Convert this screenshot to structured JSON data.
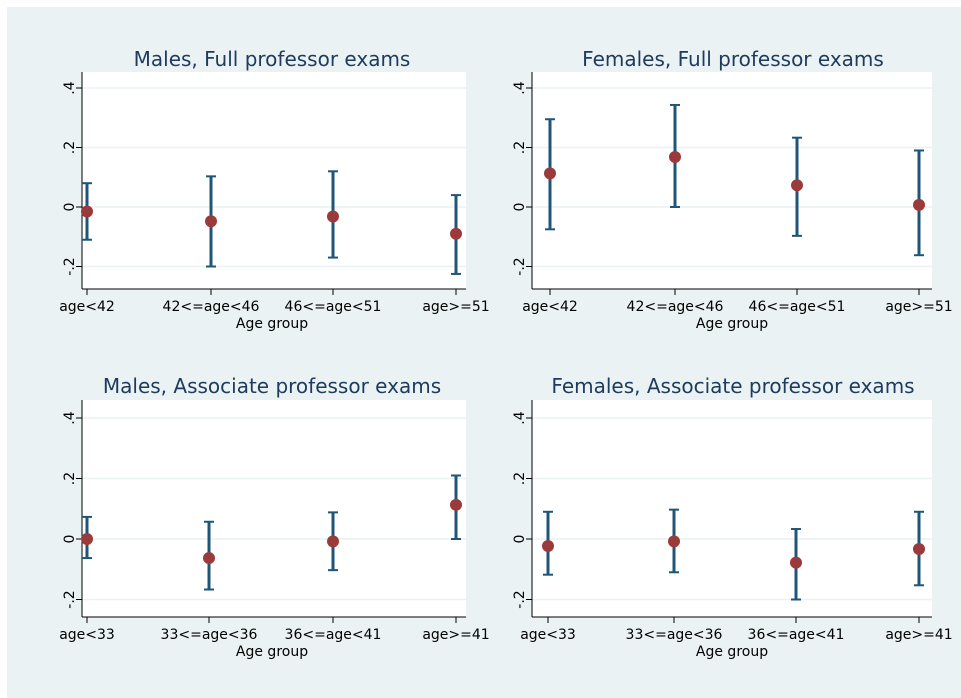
{
  "chart_data": [
    {
      "type": "scatter",
      "title": "Males, Full professor exams",
      "xlabel": "Age group",
      "ylabel": "",
      "categories": [
        "age<42",
        "42<=age<46",
        "46<=age<51",
        "age>=51"
      ],
      "ylim": [
        -0.25,
        0.45
      ],
      "yticks": [
        -0.2,
        0,
        0.2,
        0.4
      ],
      "ytick_labels": [
        "-.2",
        "0",
        ".2",
        ".4"
      ],
      "grid": true,
      "series": [
        {
          "values": [
            -0.015,
            -0.048,
            -0.032,
            -0.09
          ],
          "lower": [
            -0.11,
            -0.2,
            -0.17,
            -0.225
          ],
          "upper": [
            0.08,
            0.103,
            0.12,
            0.04
          ]
        }
      ]
    },
    {
      "type": "scatter",
      "title": "Females, Full professor exams",
      "xlabel": "Age group",
      "ylabel": "",
      "categories": [
        "age<42",
        "42<=age<46",
        "46<=age<51",
        "age>=51"
      ],
      "ylim": [
        -0.25,
        0.45
      ],
      "yticks": [
        -0.2,
        0,
        0.2,
        0.4
      ],
      "ytick_labels": [
        "-.2",
        "0",
        ".2",
        ".4"
      ],
      "grid": true,
      "series": [
        {
          "values": [
            0.113,
            0.168,
            0.073,
            0.007
          ],
          "lower": [
            -0.075,
            0.0,
            -0.097,
            -0.162
          ],
          "upper": [
            0.295,
            0.343,
            0.233,
            0.19
          ]
        }
      ]
    },
    {
      "type": "scatter",
      "title": "Males, Associate professor exams",
      "xlabel": "Age group",
      "ylabel": "",
      "categories": [
        "age<33",
        "33<=age<36",
        "36<=age<41",
        "age>=41"
      ],
      "ylim": [
        -0.25,
        0.45
      ],
      "yticks": [
        -0.2,
        0,
        0.2,
        0.4
      ],
      "ytick_labels": [
        "-.2",
        "0",
        ".2",
        ".4"
      ],
      "grid": true,
      "series": [
        {
          "values": [
            0.0,
            -0.063,
            -0.008,
            0.113
          ],
          "lower": [
            -0.063,
            -0.167,
            -0.103,
            0.0
          ],
          "upper": [
            0.073,
            0.057,
            0.088,
            0.21
          ]
        }
      ]
    },
    {
      "type": "scatter",
      "title": "Females, Associate professor exams",
      "xlabel": "Age group",
      "ylabel": "",
      "categories": [
        "age<33",
        "33<=age<36",
        "36<=age<41",
        "age>=41"
      ],
      "ylim": [
        -0.25,
        0.45
      ],
      "yticks": [
        -0.2,
        0,
        0.2,
        0.4
      ],
      "ytick_labels": [
        "-.2",
        "0",
        ".2",
        ".4"
      ],
      "grid": true,
      "series": [
        {
          "values": [
            -0.023,
            -0.008,
            -0.078,
            -0.033
          ],
          "lower": [
            -0.118,
            -0.11,
            -0.2,
            -0.153
          ],
          "upper": [
            0.09,
            0.097,
            0.033,
            0.09
          ]
        }
      ]
    }
  ],
  "colors": {
    "background": "#eaf2f3",
    "plot_background": "#ffffff",
    "grid": "#eaf2f3",
    "errorbar": "#1f5678",
    "point": "#9b3a3a",
    "title": "#1e3a5c"
  }
}
